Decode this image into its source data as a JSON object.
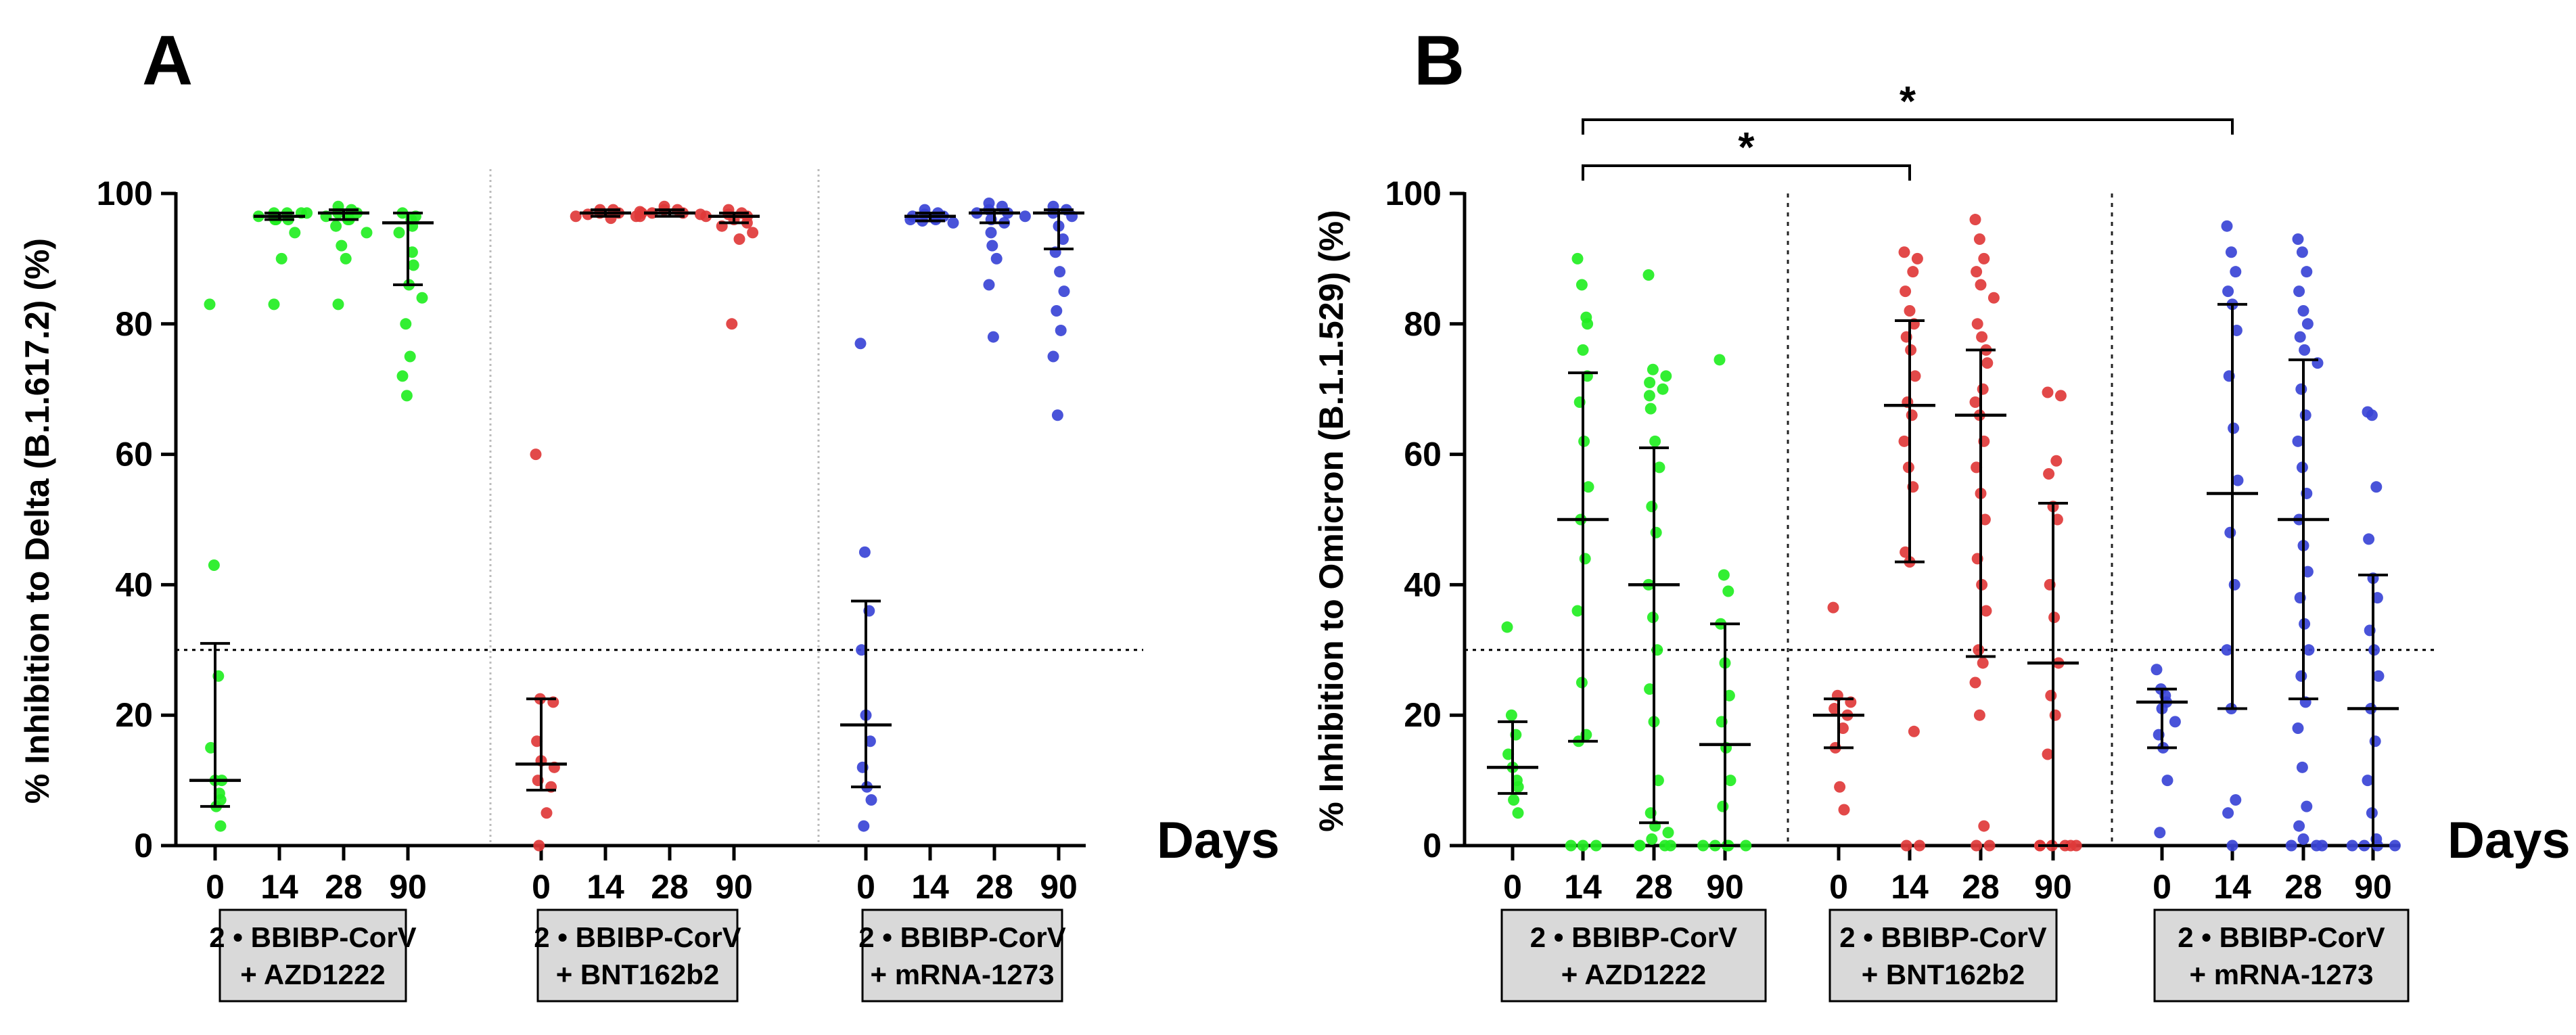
{
  "figure": {
    "days_label": "Days",
    "significance_marker": "*",
    "colors": {
      "AZD1222": "#22ee22",
      "BNT162b2": "#e03a3a",
      "mRNA-1273": "#3a44d6",
      "axis": "#000000",
      "box_fill": "#d9d9d9"
    }
  },
  "chart_data": [
    {
      "panel": "A",
      "type": "scatter",
      "ylabel": "% Inhibition to Delta (B.1.617.2) (%)",
      "ylim": [
        0,
        100
      ],
      "yticks": [
        0,
        20,
        40,
        60,
        80,
        100
      ],
      "threshold": 30,
      "xlabel": "Days",
      "groups": [
        {
          "label_line1": "2 • BBIBP-CorV",
          "label_line2": "+ AZD1222",
          "color_key": "AZD1222",
          "days": [
            {
              "day": "0",
              "median": 10,
              "q1": 6,
              "q3": 31,
              "values": [
                83,
                43,
                26,
                15,
                10,
                8,
                7,
                6,
                3,
                10
              ]
            },
            {
              "day": "14",
              "median": 96.5,
              "q1": 96,
              "q3": 97,
              "values": [
                97,
                97,
                96.5,
                96,
                96,
                97,
                96.5,
                97,
                96,
                94,
                90,
                83
              ]
            },
            {
              "day": "28",
              "median": 97,
              "q1": 96,
              "q3": 97.5,
              "values": [
                98,
                97.5,
                97,
                97,
                96.5,
                96,
                96,
                95,
                94,
                92,
                90,
                83
              ]
            },
            {
              "day": "90",
              "median": 95.5,
              "q1": 86,
              "q3": 97,
              "values": [
                97,
                96.5,
                96,
                95,
                94,
                91,
                89,
                86,
                84,
                80,
                75,
                72,
                69
              ]
            }
          ]
        },
        {
          "label_line1": "2 • BBIBP-CorV",
          "label_line2": "+ BNT162b2",
          "color_key": "BNT162b2",
          "days": [
            {
              "day": "0",
              "median": 12.5,
              "q1": 8.5,
              "q3": 22.5,
              "values": [
                60,
                22.5,
                22,
                16,
                13,
                12,
                10,
                9,
                5,
                0
              ]
            },
            {
              "day": "14",
              "median": 97,
              "q1": 96.5,
              "q3": 97.5,
              "values": [
                97.5,
                97.5,
                97,
                97,
                96.8,
                96.5,
                96.5,
                97,
                96.2
              ]
            },
            {
              "day": "28",
              "median": 97,
              "q1": 96.5,
              "q3": 97.5,
              "values": [
                98,
                97.5,
                97.5,
                97,
                97,
                96.8,
                96.5,
                96.5,
                97.2
              ]
            },
            {
              "day": "90",
              "median": 96.5,
              "q1": 95.5,
              "q3": 97,
              "values": [
                97.5,
                97,
                96.8,
                96.5,
                96,
                95.5,
                95,
                94,
                93,
                80
              ]
            }
          ]
        },
        {
          "label_line1": "2 • BBIBP-CorV",
          "label_line2": "+ mRNA-1273",
          "color_key": "mRNA-1273",
          "days": [
            {
              "day": "0",
              "median": 18.5,
              "q1": 9,
              "q3": 37.5,
              "values": [
                77,
                45,
                36,
                30,
                20,
                16,
                12,
                9,
                7,
                3
              ]
            },
            {
              "day": "14",
              "median": 96.5,
              "q1": 95.8,
              "q3": 97,
              "values": [
                97.5,
                97,
                96.8,
                96.5,
                96.5,
                96.2,
                96,
                95.8,
                95.5,
                96
              ]
            },
            {
              "day": "28",
              "median": 97,
              "q1": 95.5,
              "q3": 97.5,
              "values": [
                98.5,
                98,
                97.5,
                97,
                97,
                96.5,
                96,
                95.5,
                94,
                92,
                90,
                86,
                78
              ]
            },
            {
              "day": "90",
              "median": 97,
              "q1": 91.5,
              "q3": 97.5,
              "values": [
                98,
                97.5,
                97,
                96.5,
                95,
                93,
                91,
                88,
                85,
                82,
                79,
                75,
                66
              ]
            }
          ]
        }
      ]
    },
    {
      "panel": "B",
      "type": "scatter",
      "ylabel": "% Inhibition to Omicron (B.1.1.529) (%)",
      "ylim": [
        0,
        100
      ],
      "yticks": [
        0,
        20,
        40,
        60,
        80,
        100
      ],
      "threshold": 30,
      "xlabel": "Days",
      "groups": [
        {
          "label_line1": "2 • BBIBP-CorV",
          "label_line2": "+ AZD1222",
          "color_key": "AZD1222",
          "days": [
            {
              "day": "0",
              "median": 12,
              "q1": 8,
              "q3": 19,
              "values": [
                33.5,
                20,
                17,
                14,
                12,
                10,
                9,
                7,
                5
              ]
            },
            {
              "day": "14",
              "median": 50,
              "q1": 16,
              "q3": 72.5,
              "values": [
                90,
                86,
                81,
                80,
                76,
                72,
                68,
                62,
                55,
                50,
                44,
                36,
                25,
                17,
                16,
                0,
                0,
                0
              ]
            },
            {
              "day": "28",
              "median": 40,
              "q1": 3.5,
              "q3": 61,
              "values": [
                87.5,
                73,
                72,
                71,
                70,
                69,
                67,
                62,
                58,
                52,
                48,
                40,
                35,
                30,
                24,
                19,
                10,
                5,
                3,
                2,
                1,
                0,
                0,
                0,
                0
              ]
            },
            {
              "day": "90",
              "median": 15.5,
              "q1": 0,
              "q3": 34,
              "values": [
                74.5,
                41.5,
                39,
                34,
                28,
                23,
                19,
                15,
                10,
                6,
                0,
                0,
                0,
                0,
                0
              ]
            }
          ]
        },
        {
          "label_line1": "2 • BBIBP-CorV",
          "label_line2": "+ BNT162b2",
          "color_key": "BNT162b2",
          "days": [
            {
              "day": "0",
              "median": 20,
              "q1": 15,
              "q3": 22.5,
              "values": [
                36.5,
                23,
                22,
                21,
                20,
                18,
                15,
                9,
                5.5
              ]
            },
            {
              "day": "14",
              "median": 67.5,
              "q1": 43.5,
              "q3": 80.5,
              "values": [
                91,
                90,
                88,
                85,
                82,
                80,
                78,
                76,
                72,
                68,
                66,
                62,
                58,
                55,
                45,
                43.5,
                17.5,
                0,
                0
              ]
            },
            {
              "day": "28",
              "median": 66,
              "q1": 29,
              "q3": 76,
              "values": [
                96,
                93,
                90,
                88,
                86,
                84,
                80,
                78,
                76,
                74,
                70,
                68,
                66,
                62,
                58,
                54,
                50,
                44,
                40,
                36,
                30,
                28,
                25,
                20,
                3,
                0,
                0
              ]
            },
            {
              "day": "90",
              "median": 28,
              "q1": 0,
              "q3": 52.5,
              "values": [
                69.5,
                69,
                59,
                57,
                52,
                50,
                40,
                35,
                28,
                23,
                20,
                14,
                0,
                0,
                0,
                0,
                0,
                0
              ]
            }
          ]
        },
        {
          "label_line1": "2 • BBIBP-CorV",
          "label_line2": "+ mRNA-1273",
          "color_key": "mRNA-1273",
          "days": [
            {
              "day": "0",
              "median": 22,
              "q1": 15,
              "q3": 24,
              "values": [
                27,
                24,
                23,
                22,
                21,
                19,
                17,
                15,
                10,
                2
              ]
            },
            {
              "day": "14",
              "median": 54,
              "q1": 21,
              "q3": 83,
              "values": [
                95,
                91,
                88,
                85,
                83,
                79,
                72,
                64,
                56,
                48,
                40,
                30,
                21,
                7,
                5,
                0
              ]
            },
            {
              "day": "28",
              "median": 50,
              "q1": 22.5,
              "q3": 74.5,
              "values": [
                93,
                91,
                88,
                85,
                82,
                80,
                78,
                76,
                74,
                70,
                66,
                62,
                58,
                54,
                50,
                46,
                42,
                38,
                34,
                30,
                26,
                22,
                18,
                12,
                6,
                3,
                1,
                0,
                0,
                0
              ]
            },
            {
              "day": "90",
              "median": 21,
              "q1": 0,
              "q3": 41.5,
              "values": [
                66.5,
                66,
                55,
                47,
                41,
                38,
                33,
                30,
                26,
                21,
                16,
                10,
                5,
                1,
                0,
                0,
                0,
                0
              ]
            }
          ]
        }
      ],
      "significance": [
        {
          "from_group": 0,
          "to_group": 1,
          "day": "14",
          "label": "*"
        },
        {
          "from_group": 0,
          "to_group": 2,
          "day": "14",
          "label": "*"
        }
      ]
    }
  ]
}
